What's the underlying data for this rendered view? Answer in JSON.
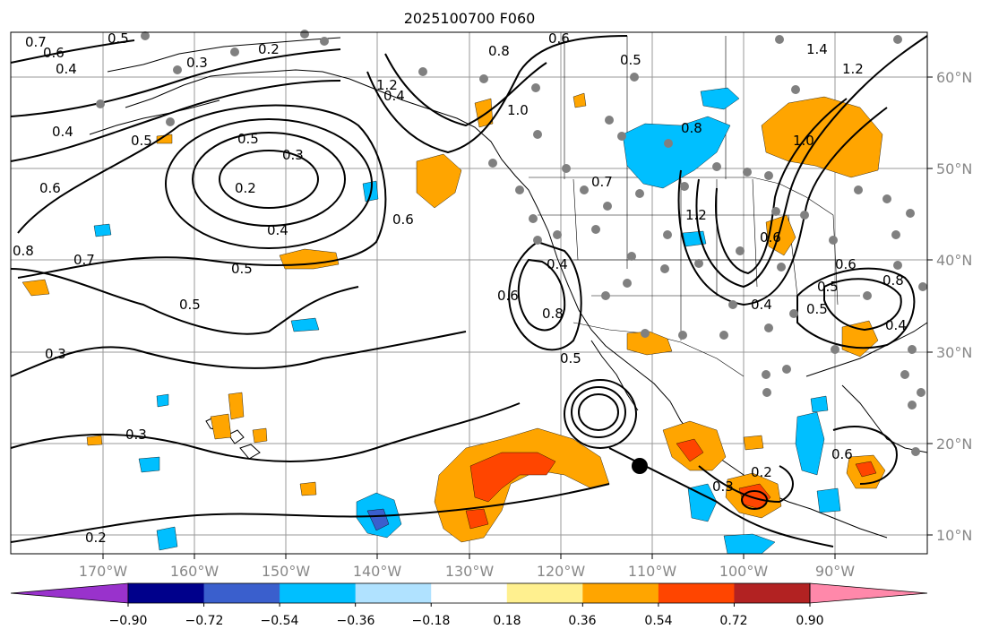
{
  "title": "2025100700 F060",
  "map": {
    "lon_labels": [
      "170°W",
      "160°W",
      "150°W",
      "140°W",
      "130°W",
      "120°W",
      "110°W",
      "100°W",
      "90°W"
    ],
    "lat_labels": [
      "60°N",
      "50°N",
      "40°N",
      "30°N",
      "20°N",
      "10°N"
    ],
    "contour_labels": [
      {
        "text": "0.7"
      },
      {
        "text": "0.6"
      },
      {
        "text": "0.4"
      },
      {
        "text": "0.3"
      },
      {
        "text": "0.5"
      },
      {
        "text": "0.2"
      },
      {
        "text": "0.4"
      },
      {
        "text": "0.5"
      },
      {
        "text": "0.6"
      },
      {
        "text": "0.8"
      },
      {
        "text": "0.7"
      },
      {
        "text": "0.5"
      },
      {
        "text": "0.3"
      },
      {
        "text": "0.2"
      },
      {
        "text": "0.4"
      },
      {
        "text": "0.5"
      },
      {
        "text": "0.5"
      },
      {
        "text": "0.3"
      },
      {
        "text": "0.3"
      },
      {
        "text": "0.2"
      },
      {
        "text": "1.2"
      },
      {
        "text": "0.4"
      },
      {
        "text": "0.6"
      },
      {
        "text": "0.8"
      },
      {
        "text": "0.6"
      },
      {
        "text": "1.0"
      },
      {
        "text": "0.5"
      },
      {
        "text": "0.7"
      },
      {
        "text": "0.8"
      },
      {
        "text": "1.2"
      },
      {
        "text": "1.0"
      },
      {
        "text": "1.2"
      },
      {
        "text": "1.4"
      },
      {
        "text": "0.6"
      },
      {
        "text": "0.4"
      },
      {
        "text": "0.8"
      },
      {
        "text": "0.6"
      },
      {
        "text": "0.4"
      },
      {
        "text": "0.5"
      },
      {
        "text": "0.5"
      },
      {
        "text": "0.6"
      },
      {
        "text": "0.8"
      },
      {
        "text": "0.4"
      },
      {
        "text": "0.3"
      },
      {
        "text": "0.5"
      },
      {
        "text": "0.2"
      },
      {
        "text": "0.6"
      }
    ]
  },
  "colorbar": {
    "colors": [
      "#9932cc",
      "#00008b",
      "#3a5fcd",
      "#00bfff",
      "#b0e2ff",
      "#ffffff",
      "#fff08f",
      "#ffa500",
      "#ff4500",
      "#b22222",
      "#ff88aa"
    ],
    "tick_labels": [
      "−0.90",
      "−0.72",
      "−0.54",
      "−0.36",
      "−0.18",
      "0.18",
      "0.36",
      "0.54",
      "0.72",
      "0.90"
    ]
  },
  "shading_colors": {
    "positive_1": "#ffa500",
    "positive_2": "#ff4500",
    "negative_1": "#00bfff",
    "negative_2": "#3a5fcd",
    "light_pos": "#fff08f",
    "light_neg": "#b0e2ff"
  },
  "station_color": "#808080"
}
